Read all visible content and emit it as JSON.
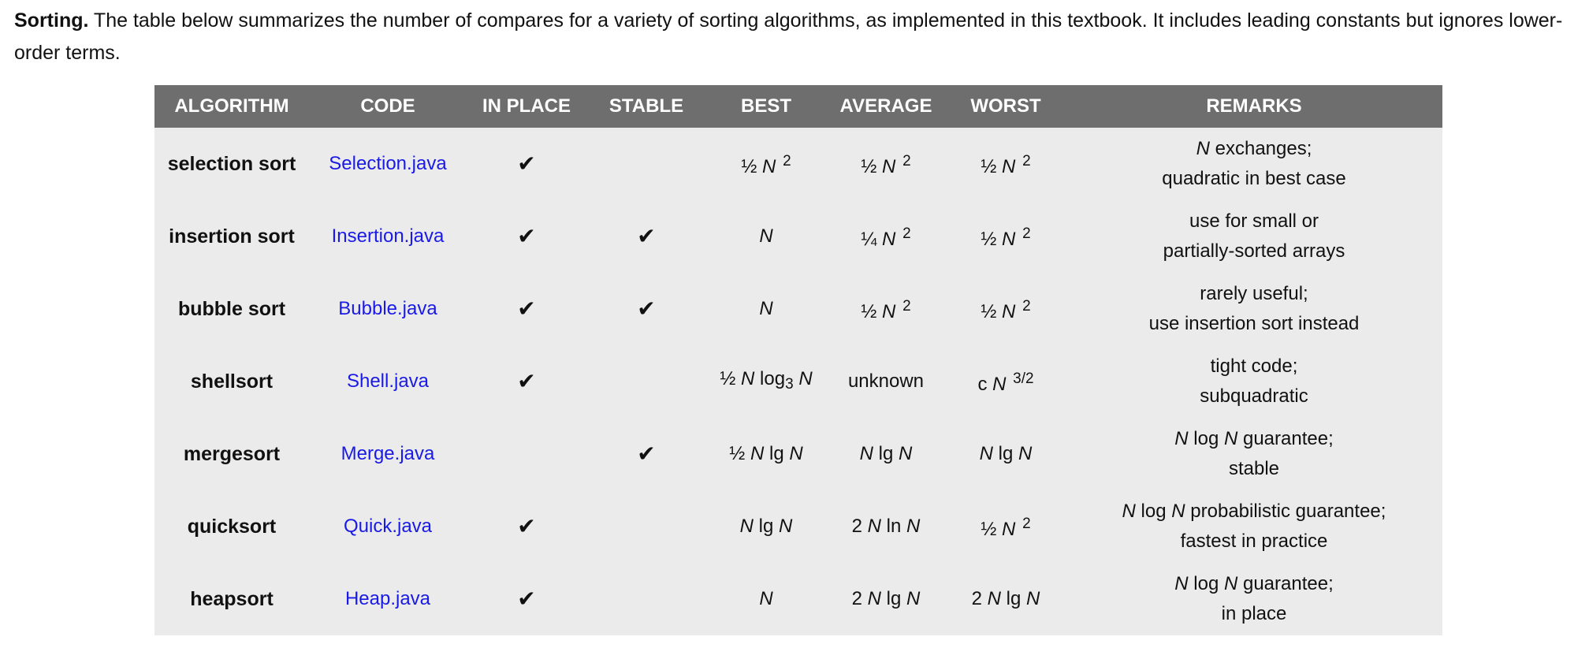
{
  "intro": {
    "lead": "Sorting.",
    "text": " The table below summarizes the number of compares for a variety of sorting algorithms, as implemented in this textbook. It includes leading constants but ignores lower-order terms."
  },
  "table": {
    "headers": [
      "ALGORITHM",
      "CODE",
      "IN PLACE",
      "STABLE",
      "BEST",
      "AVERAGE",
      "WORST",
      "REMARKS"
    ],
    "check_glyph": "✔",
    "rows": [
      {
        "algorithm": "selection sort",
        "code": "Selection.java",
        "in_place": "✔",
        "stable": "",
        "best": "½ <i>N</i> <sup>2</sup>",
        "average": "½ <i>N</i> <sup>2</sup>",
        "worst": "½ <i>N</i> <sup>2</sup>",
        "remarks": [
          "<i>N</i> exchanges;",
          "quadratic in best case"
        ]
      },
      {
        "algorithm": "insertion sort",
        "code": "Insertion.java",
        "in_place": "✔",
        "stable": "✔",
        "best": "<i>N</i>",
        "average": "¼ <i>N</i> <sup>2</sup>",
        "worst": "½ <i>N</i> <sup>2</sup>",
        "remarks": [
          "use for small or",
          "partially-sorted arrays"
        ]
      },
      {
        "algorithm": "bubble sort",
        "code": "Bubble.java",
        "in_place": "✔",
        "stable": "✔",
        "best": "<i>N</i>",
        "average": "½ <i>N</i> <sup>2</sup>",
        "worst": "½ <i>N</i> <sup>2</sup>",
        "remarks": [
          "rarely useful;",
          "use insertion sort instead"
        ]
      },
      {
        "algorithm": "shellsort",
        "code": "Shell.java",
        "in_place": "✔",
        "stable": "",
        "best": "½ <i>N</i> log<sub>3</sub> <i>N</i>",
        "average": "unknown",
        "worst": "c <i>N</i> <sup>3/2</sup>",
        "remarks": [
          "tight code;",
          "subquadratic"
        ]
      },
      {
        "algorithm": "mergesort",
        "code": "Merge.java",
        "in_place": "",
        "stable": "✔",
        "best": "½ <i>N</i> lg <i>N</i>",
        "average": "<i>N</i> lg <i>N</i>",
        "worst": "<i>N</i> lg <i>N</i>",
        "remarks": [
          "<i>N</i> log <i>N</i> guarantee;",
          "stable"
        ]
      },
      {
        "algorithm": "quicksort",
        "code": "Quick.java",
        "in_place": "✔",
        "stable": "",
        "best": "<i>N</i> lg <i>N</i>",
        "average": "2 <i>N</i> ln <i>N</i>",
        "worst": "½ <i>N</i> <sup>2</sup>",
        "remarks": [
          "<i>N</i> log <i>N</i> probabilistic guarantee;",
          "fastest in practice"
        ]
      },
      {
        "algorithm": "heapsort",
        "code": "Heap.java",
        "in_place": "✔",
        "stable": "",
        "best": "<i>N</i>",
        "average": "2 <i>N</i> lg <i>N</i>",
        "worst": "2 <i>N</i> lg <i>N</i>",
        "remarks": [
          "<i>N</i> log <i>N</i> guarantee;",
          "in place"
        ]
      }
    ]
  },
  "colors": {
    "header_bg": "#6e6e6e",
    "table_bg": "#ebebeb",
    "link": "#1a1ae6"
  }
}
